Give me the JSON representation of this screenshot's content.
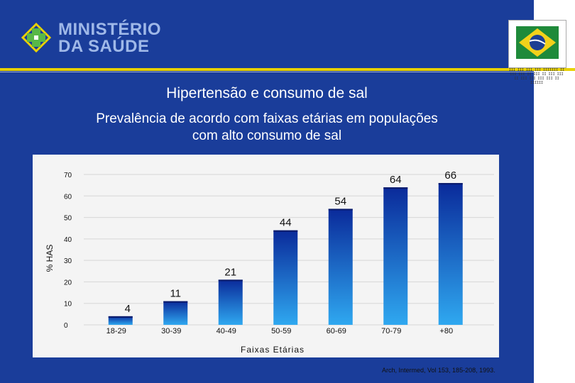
{
  "header": {
    "logo_line1": "MINISTÉRIO",
    "logo_line2": "DA SAÚDE",
    "flag_caption": "III III III III IIIIIII II III III II III II III III II III III III III II IIIIII"
  },
  "slide": {
    "title": "Hipertensão e consumo de sal",
    "subtitle": "Prevalência de acordo com faixas etárias em populações com alto consumo de sal",
    "citation": "Arch, Intermed, Vol 153, 185-208, 1993."
  },
  "colors": {
    "background": "#1a3d9a",
    "accent_line": "#e8d100",
    "bar_dark": "#0a2a9a",
    "bar_light": "#2fa8f0"
  },
  "chart_data": {
    "type": "bar",
    "categories": [
      "18-29",
      "30-39",
      "40-49",
      "50-59",
      "60-69",
      "70-79",
      "+80"
    ],
    "values": [
      4,
      11,
      21,
      44,
      54,
      64,
      66
    ],
    "data_labels": [
      "4",
      "11",
      "21",
      "44",
      "54",
      "64",
      "66"
    ],
    "xlabel": "Faixas Etárias",
    "ylabel": "% HAS",
    "ylim": [
      0,
      70
    ],
    "yticks": [
      0,
      10,
      20,
      30,
      40,
      50,
      60,
      70
    ],
    "grid": true
  }
}
